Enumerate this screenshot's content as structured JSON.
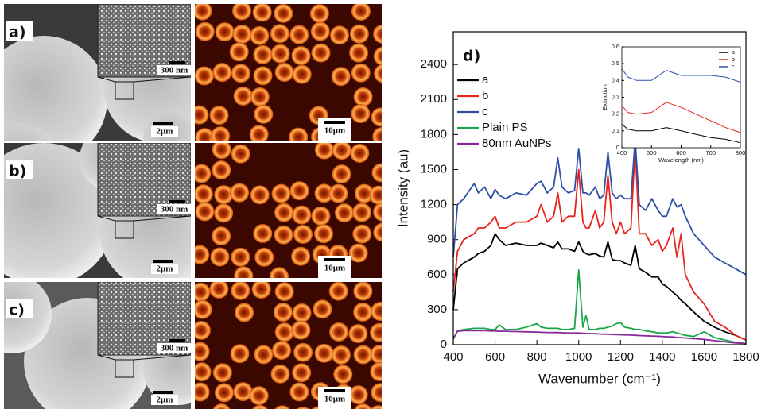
{
  "panels": [
    {
      "label": "a)",
      "inset_scale": "300 nm",
      "sem_scale": "2μm",
      "fluorescence_scale": "10μm"
    },
    {
      "label": "b)",
      "inset_scale": "300 nm",
      "sem_scale": "2μm",
      "fluorescence_scale": "10μm"
    },
    {
      "label": "c)",
      "inset_scale": "300 nm",
      "sem_scale": "2μm",
      "fluorescence_scale": "10μm"
    }
  ],
  "chart_data": [
    {
      "type": "line",
      "annotation": "d)",
      "xlabel": "Wavenumber (cm⁻¹)",
      "ylabel": "Intensity (au)",
      "xlim": [
        400,
        1800
      ],
      "ylim": [
        0,
        2680
      ],
      "xticks": [
        400,
        600,
        800,
        1000,
        1200,
        1400,
        1600,
        1800
      ],
      "yticks": [
        0,
        300,
        600,
        900,
        1200,
        1500,
        1800,
        2100,
        2400
      ],
      "legend": "upper left",
      "x": [
        400,
        420,
        450,
        500,
        520,
        550,
        580,
        600,
        620,
        650,
        700,
        750,
        800,
        820,
        850,
        880,
        900,
        920,
        950,
        980,
        1000,
        1020,
        1035,
        1050,
        1080,
        1100,
        1120,
        1140,
        1160,
        1180,
        1200,
        1220,
        1250,
        1270,
        1290,
        1320,
        1350,
        1380,
        1400,
        1420,
        1450,
        1470,
        1490,
        1510,
        1550,
        1600,
        1650,
        1700,
        1750,
        1800
      ],
      "series": [
        {
          "name": "a",
          "color": "#000000",
          "values": [
            300,
            650,
            700,
            750,
            780,
            800,
            850,
            950,
            900,
            850,
            870,
            850,
            850,
            870,
            850,
            830,
            880,
            820,
            820,
            800,
            880,
            800,
            780,
            770,
            780,
            760,
            750,
            880,
            730,
            720,
            720,
            700,
            680,
            850,
            650,
            620,
            580,
            580,
            520,
            500,
            450,
            420,
            380,
            350,
            280,
            200,
            150,
            110,
            80,
            40
          ]
        },
        {
          "name": "b",
          "color": "#e8231c",
          "values": [
            450,
            800,
            900,
            950,
            1000,
            1000,
            1050,
            1100,
            1000,
            1000,
            1050,
            1050,
            1100,
            1200,
            1050,
            1100,
            1300,
            1050,
            1100,
            1100,
            1500,
            1050,
            1000,
            1000,
            1150,
            1000,
            1050,
            1450,
            1050,
            950,
            1050,
            950,
            1000,
            1700,
            950,
            950,
            850,
            900,
            800,
            850,
            1000,
            750,
            950,
            600,
            450,
            350,
            200,
            150,
            80,
            40
          ]
        },
        {
          "name": "c",
          "color": "#3050a8",
          "values": [
            750,
            1200,
            1250,
            1380,
            1300,
            1350,
            1250,
            1330,
            1280,
            1250,
            1300,
            1280,
            1380,
            1400,
            1300,
            1350,
            1600,
            1350,
            1300,
            1320,
            1680,
            1300,
            1300,
            1280,
            1350,
            1250,
            1280,
            1650,
            1300,
            1250,
            1280,
            1250,
            1250,
            1760,
            1200,
            1150,
            1250,
            1150,
            1100,
            1100,
            1250,
            1180,
            1200,
            1100,
            950,
            850,
            750,
            700,
            650,
            600
          ]
        },
        {
          "name": "Plain PS",
          "color": "#1aa64a",
          "values": [
            50,
            120,
            130,
            140,
            140,
            140,
            130,
            130,
            170,
            130,
            130,
            150,
            180,
            150,
            140,
            140,
            140,
            130,
            130,
            140,
            640,
            150,
            250,
            130,
            130,
            140,
            140,
            150,
            160,
            180,
            190,
            150,
            140,
            130,
            130,
            120,
            110,
            100,
            100,
            100,
            110,
            100,
            90,
            80,
            70,
            110,
            60,
            40,
            20,
            10
          ]
        },
        {
          "name": "80nm AuNPs",
          "color": "#8a2a9a",
          "values": [
            50,
            115,
            120,
            120,
            120,
            120,
            118,
            118,
            115,
            115,
            112,
            110,
            108,
            106,
            105,
            104,
            104,
            102,
            100,
            100,
            100,
            98,
            96,
            95,
            94,
            92,
            90,
            90,
            88,
            86,
            85,
            84,
            82,
            80,
            78,
            76,
            74,
            72,
            70,
            68,
            66,
            62,
            60,
            58,
            52,
            45,
            35,
            25,
            15,
            10
          ]
        }
      ]
    },
    {
      "type": "line",
      "xlabel": "Wavelength (nm)",
      "ylabel": "Extinction",
      "xlim": [
        400,
        800
      ],
      "ylim": [
        0,
        0.6
      ],
      "xticks": [
        400,
        500,
        600,
        700,
        800
      ],
      "yticks": [
        0.0,
        0.1,
        0.2,
        0.3,
        0.4,
        0.5,
        0.6
      ],
      "legend": "upper right",
      "x": [
        400,
        420,
        450,
        500,
        550,
        600,
        650,
        700,
        750,
        800
      ],
      "series": [
        {
          "name": "a",
          "color": "#000000",
          "values": [
            0.14,
            0.11,
            0.1,
            0.1,
            0.12,
            0.1,
            0.08,
            0.06,
            0.05,
            0.03
          ]
        },
        {
          "name": "b",
          "color": "#e8231c",
          "values": [
            0.25,
            0.21,
            0.2,
            0.21,
            0.27,
            0.24,
            0.2,
            0.16,
            0.12,
            0.09
          ]
        },
        {
          "name": "c",
          "color": "#3050a8",
          "values": [
            0.47,
            0.42,
            0.4,
            0.4,
            0.46,
            0.43,
            0.43,
            0.43,
            0.42,
            0.39
          ]
        }
      ]
    }
  ]
}
